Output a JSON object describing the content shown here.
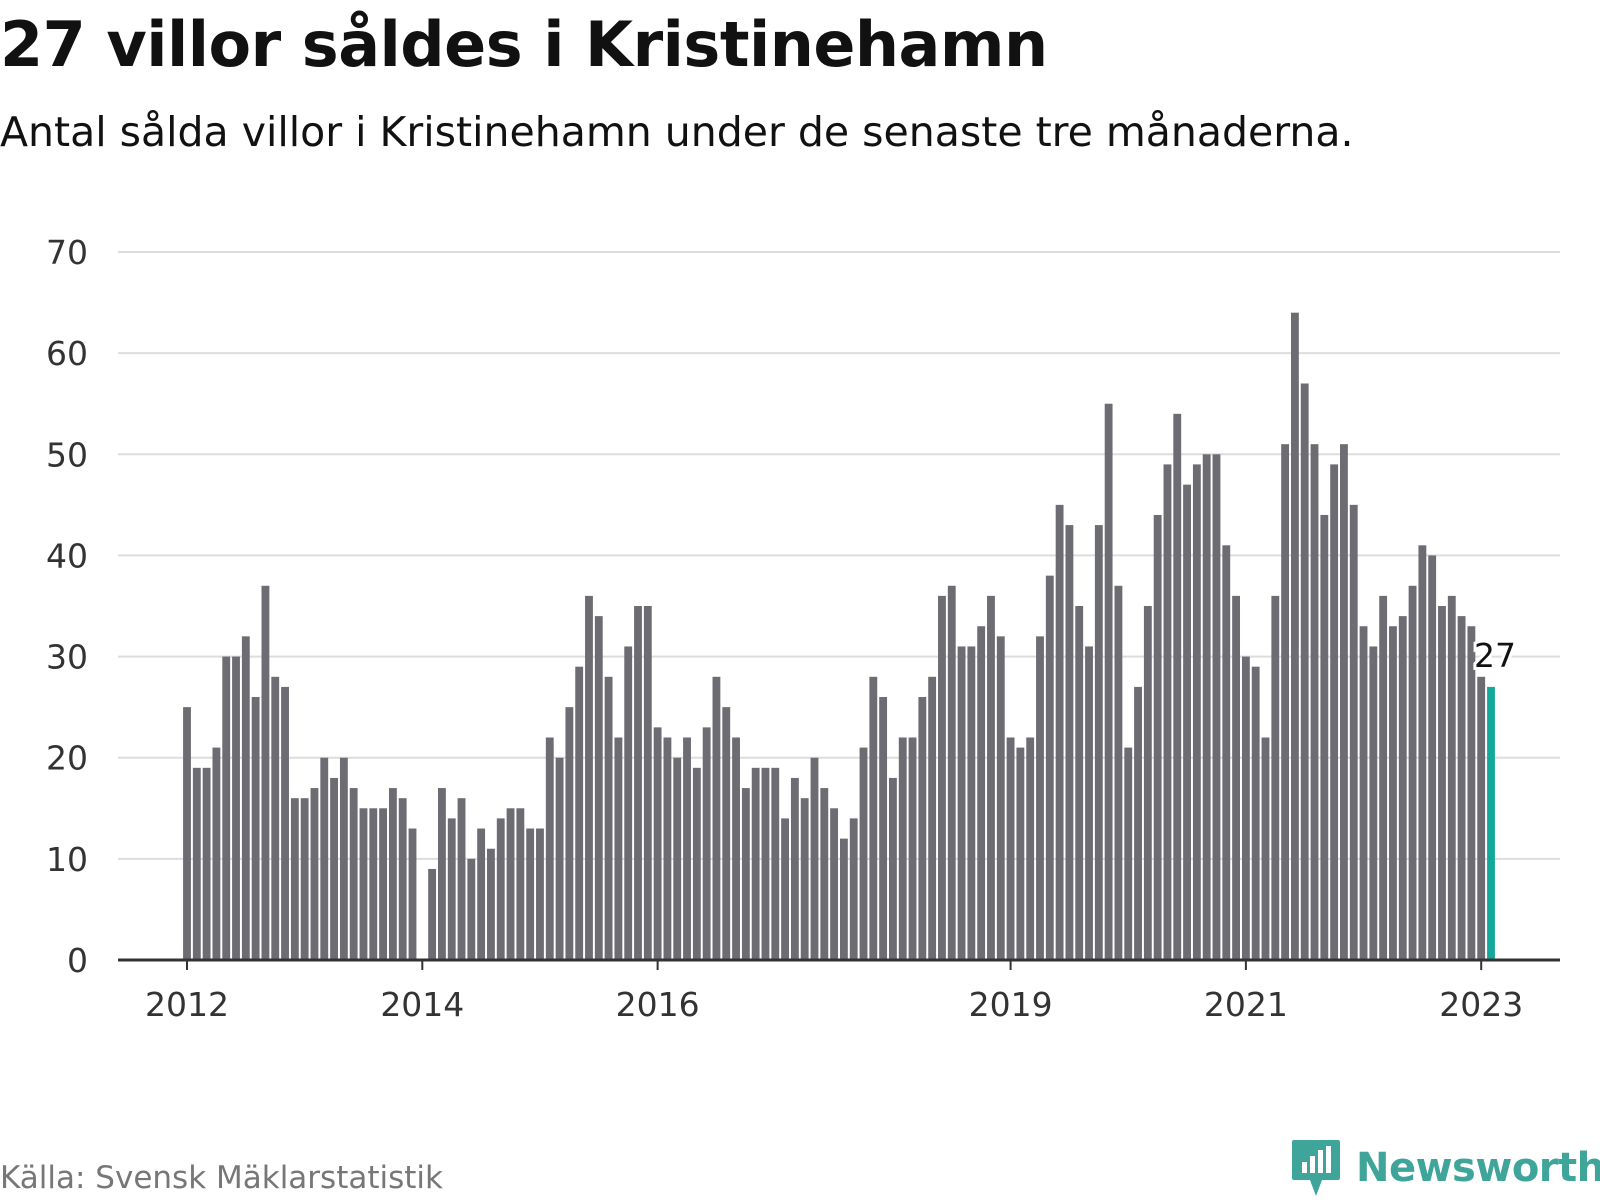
{
  "title": "27 villor såldes i Kristinehamn",
  "subtitle": "Antal sålda villor i Kristinehamn under de senaste tre månaderna.",
  "source": "Källa: Svensk Mäklarstatistik",
  "brand": {
    "name": "Newsworthy",
    "icon": "newsworthy-logo-icon",
    "color": "#3fa59a"
  },
  "colors": {
    "bar": "#6d6c72",
    "highlight": "#14a89a",
    "grid": "#dddddd",
    "axis": "#333333"
  },
  "chart_data": {
    "type": "bar",
    "title": "27 villor såldes i Kristinehamn",
    "subtitle": "Antal sålda villor i Kristinehamn under de senaste tre månaderna.",
    "xlabel": "",
    "ylabel": "",
    "ylim": [
      0,
      70
    ],
    "yticks": [
      0,
      10,
      20,
      30,
      40,
      50,
      60,
      70
    ],
    "grid": true,
    "x_start": "2012-01",
    "x_end": "2023-01",
    "xticks": [
      {
        "label": "2012",
        "date": "2012-01"
      },
      {
        "label": "2014",
        "date": "2014-01"
      },
      {
        "label": "2016",
        "date": "2016-01"
      },
      {
        "label": "2019",
        "date": "2019-01"
      },
      {
        "label": "2021",
        "date": "2021-01"
      },
      {
        "label": "2023",
        "date": "2023-01"
      }
    ],
    "values": [
      25,
      19,
      19,
      21,
      30,
      30,
      32,
      26,
      37,
      28,
      27,
      16,
      16,
      17,
      20,
      18,
      20,
      17,
      15,
      15,
      15,
      17,
      16,
      13,
      null,
      9,
      17,
      14,
      16,
      10,
      13,
      11,
      14,
      15,
      15,
      13,
      13,
      22,
      20,
      25,
      29,
      36,
      34,
      28,
      22,
      31,
      35,
      35,
      23,
      22,
      20,
      22,
      19,
      23,
      28,
      25,
      22,
      17,
      19,
      19,
      19,
      14,
      18,
      16,
      20,
      17,
      15,
      12,
      14,
      21,
      28,
      26,
      18,
      22,
      22,
      26,
      28,
      36,
      37,
      31,
      31,
      33,
      36,
      32,
      22,
      21,
      22,
      32,
      38,
      45,
      43,
      35,
      31,
      43,
      55,
      37,
      21,
      27,
      35,
      44,
      49,
      54,
      47,
      49,
      50,
      50,
      41,
      36,
      30,
      29,
      22,
      36,
      51,
      64,
      57,
      51,
      44,
      49,
      51,
      45,
      33,
      31,
      36,
      33,
      34,
      37,
      41,
      40,
      35,
      36,
      34,
      33,
      28,
      27
    ],
    "highlight": {
      "index": 133,
      "value": 27,
      "label": "27"
    }
  }
}
